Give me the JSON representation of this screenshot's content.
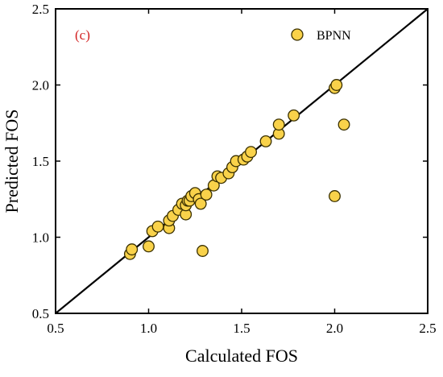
{
  "chart_data": {
    "type": "scatter",
    "panel_label": "(c)",
    "title": "",
    "xlabel": "Calculated FOS",
    "ylabel": "Predicted FOS",
    "xlim": [
      0.5,
      2.5
    ],
    "ylim": [
      0.5,
      2.5
    ],
    "xticks": [
      "0.5",
      "1.0",
      "1.5",
      "2.0",
      "2.5"
    ],
    "yticks": [
      "0.5",
      "1.0",
      "1.5",
      "2.0",
      "2.5"
    ],
    "grid": false,
    "legend_position": "top-right",
    "reference_line": {
      "x": [
        0.5,
        2.5
      ],
      "y": [
        0.5,
        2.5
      ]
    },
    "colors": {
      "marker_fill": "#F9D24A",
      "marker_edge": "#3A3000",
      "panel_label": "#D21F1F",
      "axes": "#000000"
    },
    "series": [
      {
        "name": "BPNN",
        "points": [
          [
            0.9,
            0.89
          ],
          [
            0.91,
            0.92
          ],
          [
            1.0,
            0.94
          ],
          [
            1.02,
            1.04
          ],
          [
            1.05,
            1.07
          ],
          [
            1.11,
            1.06
          ],
          [
            1.11,
            1.11
          ],
          [
            1.13,
            1.14
          ],
          [
            1.16,
            1.18
          ],
          [
            1.18,
            1.22
          ],
          [
            1.2,
            1.15
          ],
          [
            1.2,
            1.21
          ],
          [
            1.21,
            1.24
          ],
          [
            1.22,
            1.24
          ],
          [
            1.23,
            1.27
          ],
          [
            1.25,
            1.29
          ],
          [
            1.27,
            1.25
          ],
          [
            1.28,
            1.22
          ],
          [
            1.29,
            0.91
          ],
          [
            1.31,
            1.28
          ],
          [
            1.35,
            1.34
          ],
          [
            1.37,
            1.4
          ],
          [
            1.39,
            1.39
          ],
          [
            1.43,
            1.42
          ],
          [
            1.45,
            1.46
          ],
          [
            1.47,
            1.5
          ],
          [
            1.51,
            1.51
          ],
          [
            1.53,
            1.53
          ],
          [
            1.55,
            1.56
          ],
          [
            1.63,
            1.63
          ],
          [
            1.7,
            1.68
          ],
          [
            1.7,
            1.74
          ],
          [
            1.78,
            1.8
          ],
          [
            2.0,
            1.98
          ],
          [
            2.01,
            2.0
          ],
          [
            2.05,
            1.74
          ],
          [
            2.0,
            1.27
          ]
        ]
      }
    ]
  }
}
